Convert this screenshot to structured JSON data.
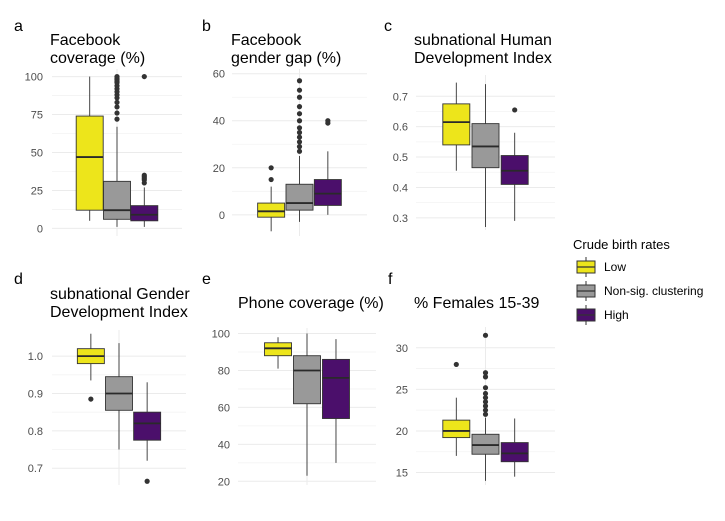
{
  "legend": {
    "title": "Crude birth rates",
    "items": [
      {
        "label": "Low",
        "color": "#ede51b"
      },
      {
        "label": "Non-sig. clustering",
        "color": "#999999"
      },
      {
        "label": "High",
        "color": "#4b0f6b"
      }
    ]
  },
  "chart_data": [
    {
      "letter": "a",
      "type": "box",
      "title": [
        "Facebook",
        "coverage (%)"
      ],
      "ylim": [
        -5,
        105
      ],
      "ticks": [
        0,
        25,
        50,
        75,
        100
      ],
      "grid": true,
      "groups": [
        {
          "name": "Low",
          "color": "#ede51b",
          "min": 5,
          "q1": 12,
          "median": 47,
          "q3": 74,
          "max": 100,
          "outliers": []
        },
        {
          "name": "Non-sig. clustering",
          "color": "#999999",
          "min": 1,
          "q1": 6,
          "median": 12,
          "q3": 31,
          "max": 67,
          "outliers": [
            72,
            76,
            80,
            83,
            86,
            88,
            90,
            92,
            94,
            96,
            97,
            98,
            99,
            100
          ]
        },
        {
          "name": "High",
          "color": "#4b0f6b",
          "min": 1,
          "q1": 5,
          "median": 9,
          "q3": 15,
          "max": 27,
          "outliers": [
            30,
            32,
            33,
            34,
            35,
            100
          ]
        }
      ]
    },
    {
      "letter": "b",
      "type": "box",
      "title": [
        "Facebook",
        "gender gap (%)"
      ],
      "ylim": [
        -9,
        62
      ],
      "ticks": [
        0,
        20,
        40,
        60
      ],
      "grid": true,
      "groups": [
        {
          "name": "Low",
          "color": "#ede51b",
          "min": -7,
          "q1": -1,
          "median": 1.5,
          "q3": 5,
          "max": 12,
          "outliers": [
            15,
            20
          ]
        },
        {
          "name": "Non-sig. clustering",
          "color": "#999999",
          "min": -3,
          "q1": 2,
          "median": 5,
          "q3": 13,
          "max": 25,
          "outliers": [
            27,
            29,
            31,
            33,
            35,
            37,
            40,
            43,
            46,
            50,
            53,
            57
          ]
        },
        {
          "name": "High",
          "color": "#4b0f6b",
          "min": 0,
          "q1": 4,
          "median": 9,
          "q3": 15,
          "max": 27,
          "outliers": [
            39,
            40
          ]
        }
      ]
    },
    {
      "letter": "c",
      "type": "box",
      "title": [
        "subnational Human",
        "Development Index"
      ],
      "ylim": [
        0.26,
        0.77
      ],
      "ticks": [
        0.3,
        0.4,
        0.5,
        0.6,
        0.7
      ],
      "tick_labels": [
        "0.3",
        "0.4",
        "0.5",
        "0.6",
        "0.7"
      ],
      "grid": true,
      "groups": [
        {
          "name": "Low",
          "color": "#ede51b",
          "min": 0.455,
          "q1": 0.54,
          "median": 0.615,
          "q3": 0.675,
          "max": 0.745,
          "outliers": []
        },
        {
          "name": "Non-sig. clustering",
          "color": "#999999",
          "min": 0.27,
          "q1": 0.465,
          "median": 0.535,
          "q3": 0.61,
          "max": 0.74,
          "outliers": []
        },
        {
          "name": "High",
          "color": "#4b0f6b",
          "min": 0.29,
          "q1": 0.41,
          "median": 0.455,
          "q3": 0.505,
          "max": 0.58,
          "outliers": [
            0.655
          ]
        }
      ]
    },
    {
      "letter": "d",
      "type": "box",
      "title": [
        "subnational Gender",
        "Development Index"
      ],
      "ylim": [
        0.655,
        1.07
      ],
      "ticks": [
        0.7,
        0.8,
        0.9,
        1.0
      ],
      "tick_labels": [
        "0.7",
        "0.8",
        "0.9",
        "1.0"
      ],
      "grid": true,
      "groups": [
        {
          "name": "Low",
          "color": "#ede51b",
          "min": 0.935,
          "q1": 0.98,
          "median": 1.0,
          "q3": 1.02,
          "max": 1.06,
          "outliers": [
            0.885
          ]
        },
        {
          "name": "Non-sig. clustering",
          "color": "#999999",
          "min": 0.75,
          "q1": 0.855,
          "median": 0.9,
          "q3": 0.945,
          "max": 1.035,
          "outliers": []
        },
        {
          "name": "High",
          "color": "#4b0f6b",
          "min": 0.72,
          "q1": 0.775,
          "median": 0.82,
          "q3": 0.85,
          "max": 0.93,
          "outliers": [
            0.665
          ]
        }
      ]
    },
    {
      "letter": "e",
      "type": "box",
      "title": [
        "Phone coverage (%)"
      ],
      "ylim": [
        18,
        103
      ],
      "ticks": [
        20,
        40,
        60,
        80,
        100
      ],
      "grid": true,
      "groups": [
        {
          "name": "Low",
          "color": "#ede51b",
          "min": 81,
          "q1": 88,
          "median": 92,
          "q3": 95,
          "max": 98,
          "outliers": []
        },
        {
          "name": "Non-sig. clustering",
          "color": "#999999",
          "min": 23,
          "q1": 62,
          "median": 80,
          "q3": 88,
          "max": 100,
          "outliers": []
        },
        {
          "name": "High",
          "color": "#4b0f6b",
          "min": 30,
          "q1": 54,
          "median": 76,
          "q3": 86,
          "max": 97,
          "outliers": []
        }
      ]
    },
    {
      "letter": "f",
      "type": "box",
      "title": [
        "% Females 15-39"
      ],
      "ylim": [
        13.5,
        32.5
      ],
      "ticks": [
        15,
        20,
        25,
        30
      ],
      "grid": true,
      "groups": [
        {
          "name": "Low",
          "color": "#ede51b",
          "min": 17,
          "q1": 19.2,
          "median": 20,
          "q3": 21.3,
          "max": 24,
          "outliers": [
            28
          ]
        },
        {
          "name": "Non-sig. clustering",
          "color": "#999999",
          "min": 14,
          "q1": 17.2,
          "median": 18.3,
          "q3": 19.6,
          "max": 21.6,
          "outliers": [
            22,
            22.5,
            23,
            23.5,
            24,
            24.5,
            25.2,
            26.5,
            27,
            31.5
          ]
        },
        {
          "name": "High",
          "color": "#4b0f6b",
          "min": 14.5,
          "q1": 16.3,
          "median": 17.3,
          "q3": 18.6,
          "max": 21.5,
          "outliers": []
        }
      ]
    }
  ]
}
